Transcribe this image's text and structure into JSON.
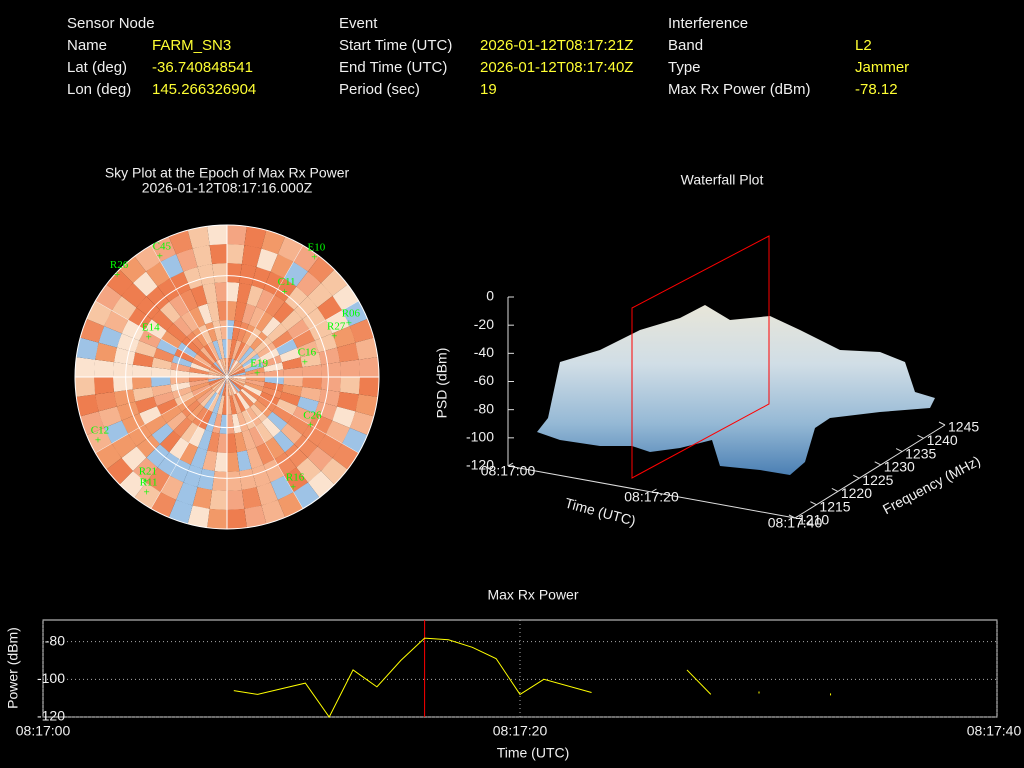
{
  "header": {
    "sensor_node": {
      "title": "Sensor Node",
      "rows": [
        [
          "Name",
          "FARM_SN3"
        ],
        [
          "Lat (deg)",
          "-36.740848541"
        ],
        [
          "Lon (deg)",
          "145.266326904"
        ]
      ]
    },
    "event": {
      "title": "Event",
      "rows": [
        [
          "Start Time (UTC)",
          "2026-01-12T08:17:21Z"
        ],
        [
          "End Time (UTC)",
          "2026-01-12T08:17:40Z"
        ],
        [
          "Period (sec)",
          "19"
        ]
      ]
    },
    "interference": {
      "title": "Interference",
      "rows": [
        [
          "Band",
          "L2"
        ],
        [
          "Type",
          "Jammer"
        ],
        [
          "Max Rx Power (dBm)",
          "-78.12"
        ]
      ]
    }
  },
  "chart_data": [
    {
      "type": "polar",
      "title": "Sky Plot at the Epoch of Max Rx Power",
      "subtitle": "2026-01-12T08:17:16.000Z",
      "rlim": [
        90,
        0
      ],
      "color": "#00ff00",
      "points": [
        {
          "name": "E10",
          "azimuth": 36,
          "elevation": 2
        },
        {
          "name": "C45",
          "azimuth": 331,
          "elevation": 8
        },
        {
          "name": "R06",
          "azimuth": 66,
          "elevation": 11
        },
        {
          "name": "R27",
          "azimuth": 69,
          "elevation": 22
        },
        {
          "name": "C11",
          "azimuth": 34,
          "elevation": 29
        },
        {
          "name": "C16",
          "azimuth": 79,
          "elevation": 43
        },
        {
          "name": "E19",
          "azimuth": 82,
          "elevation": 72
        },
        {
          "name": "C26",
          "azimuth": 120,
          "elevation": 33
        },
        {
          "name": "R16",
          "azimuth": 149,
          "elevation": 14
        },
        {
          "name": "R21",
          "azimuth": 218,
          "elevation": 12
        },
        {
          "name": "R11",
          "azimuth": 215,
          "elevation": 7
        },
        {
          "name": "C12",
          "azimuth": 244,
          "elevation": 5
        },
        {
          "name": "E14",
          "azimuth": 297,
          "elevation": 38
        },
        {
          "name": "R26",
          "azimuth": 313,
          "elevation": 1
        }
      ]
    },
    {
      "type": "surface",
      "title": "Waterfall Plot",
      "xlabel": "Time (UTC)",
      "ylabel": "Frequency (MHz)",
      "zlabel": "PSD (dBm)",
      "xlim": [
        "08:17:00",
        "08:17:40"
      ],
      "xticks": [
        "08:17:00",
        "08:17:20",
        "08:17:40"
      ],
      "ylim": [
        1210,
        1245
      ],
      "yticks": [
        1210,
        1215,
        1220,
        1225,
        1230,
        1235,
        1240,
        1245
      ],
      "zlim": [
        -120,
        0
      ],
      "zticks": [
        0,
        -20,
        -40,
        -60,
        -80,
        -100,
        -120
      ]
    },
    {
      "type": "line",
      "title": "Max Rx Power",
      "xlabel": "Time (UTC)",
      "ylabel": "Power (dBm)",
      "x": [
        "08:17:08",
        "08:17:09",
        "08:17:11",
        "08:17:12",
        "08:17:13",
        "08:17:14",
        "08:17:15",
        "08:17:16",
        "08:17:17",
        "08:17:18",
        "08:17:19",
        "08:17:20",
        "08:17:21",
        "08:17:23",
        "08:17:25",
        "08:17:27",
        "08:17:28",
        "08:17:29",
        "08:17:30",
        "08:17:31",
        "08:17:33"
      ],
      "series": [
        {
          "name": "Max Rx Power",
          "color": "#ffff00",
          "values": [
            -106,
            -108,
            -102,
            -120,
            -95,
            -104,
            -90,
            -78.12,
            -79,
            -83,
            -89,
            -108,
            -100,
            -107,
            null,
            -95,
            -108,
            null,
            -107,
            null,
            -108
          ]
        }
      ],
      "xlim": [
        "08:17:00",
        "08:17:40"
      ],
      "xticks": [
        "08:17:00",
        "08:17:20",
        "08:17:40"
      ],
      "ylim": [
        -120,
        -68.5
      ],
      "yticks": [
        -80,
        -100,
        -120
      ],
      "grid": true,
      "marker_x": "08:17:16",
      "marker_color": "#ff0000"
    }
  ]
}
